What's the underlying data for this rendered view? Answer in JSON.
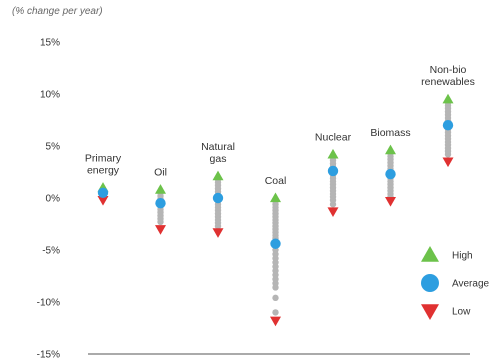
{
  "chart_data": {
    "type": "scatter",
    "subtitle": "(% change per year)",
    "y_ticks": [
      "15%",
      "10%",
      "5%",
      "0%",
      "-5%",
      "-10%",
      "-15%"
    ],
    "ylim": [
      -15,
      15
    ],
    "grid": false,
    "legend_position": "right",
    "legend": [
      {
        "key": "high",
        "label": "High",
        "marker": "triangle-up",
        "color": "#6cc24a"
      },
      {
        "key": "average",
        "label": "Average",
        "marker": "circle",
        "color": "#2d9ee0"
      },
      {
        "key": "low",
        "label": "Low",
        "marker": "triangle-down",
        "color": "#e03131"
      }
    ],
    "dot_color": "#b5b5b5",
    "categories": [
      {
        "label": [
          "Primary",
          "energy"
        ],
        "high": 1.0,
        "average": 0.5,
        "low": -0.2,
        "dots": [
          0.8,
          0.6,
          0.4,
          0.2,
          0.0
        ]
      },
      {
        "label": [
          "Oil"
        ],
        "high": 0.8,
        "average": -0.5,
        "low": -3.0,
        "dots": [
          0.5,
          0.2,
          -0.1,
          -0.8,
          -1.1,
          -1.4,
          -1.7,
          -2.0,
          -2.3
        ]
      },
      {
        "label": [
          "Natural",
          "gas"
        ],
        "high": 2.1,
        "average": 0.0,
        "low": -3.3,
        "dots": [
          1.8,
          1.5,
          1.2,
          0.9,
          0.6,
          0.3,
          -0.3,
          -0.6,
          -0.9,
          -1.2,
          -1.5,
          -1.8,
          -2.1,
          -2.4,
          -2.7
        ]
      },
      {
        "label": [
          "Coal"
        ],
        "high": 0.0,
        "average": -4.4,
        "low": -11.8,
        "dots": [
          -0.3,
          -0.6,
          -0.9,
          -1.2,
          -1.5,
          -1.8,
          -2.1,
          -2.4,
          -2.7,
          -3.0,
          -3.3,
          -3.6,
          -3.9,
          -5.0,
          -5.4,
          -5.8,
          -6.2,
          -6.6,
          -7.0,
          -7.4,
          -7.8,
          -8.2,
          -8.6,
          -9.6,
          -11.0
        ]
      },
      {
        "label": [
          "Nuclear"
        ],
        "high": 4.2,
        "average": 2.6,
        "low": -1.3,
        "dots": [
          3.9,
          3.6,
          3.3,
          3.0,
          2.2,
          1.9,
          1.6,
          1.3,
          1.0,
          0.7,
          0.4,
          0.1,
          -0.2,
          -0.6
        ]
      },
      {
        "label": [
          "Biomass"
        ],
        "high": 4.6,
        "average": 2.3,
        "low": -0.3,
        "dots": [
          4.3,
          4.0,
          3.7,
          3.4,
          3.1,
          2.8,
          1.9,
          1.6,
          1.3,
          1.0,
          0.7,
          0.4,
          0.1
        ]
      },
      {
        "label": [
          "Non-bio",
          "renewables"
        ],
        "high": 9.5,
        "average": 7.0,
        "low": 3.5,
        "dots": [
          9.2,
          8.9,
          8.6,
          8.3,
          8.0,
          7.7,
          7.4,
          6.6,
          6.3,
          6.0,
          5.7,
          5.4,
          5.1,
          4.8,
          4.5,
          4.2
        ]
      }
    ]
  }
}
